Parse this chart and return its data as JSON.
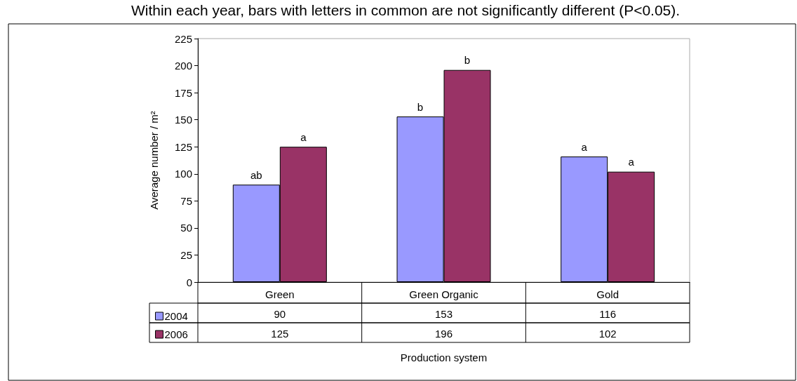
{
  "chart_data": {
    "type": "bar",
    "ylabel": "Average number / m²",
    "xlabel": "Production system",
    "categories": [
      "Green",
      "Green Organic",
      "Gold"
    ],
    "series": [
      {
        "name": "2004",
        "color": "#9999ff",
        "values": [
          90,
          153,
          116
        ]
      },
      {
        "name": "2006",
        "color": "#993366",
        "values": [
          125,
          196,
          102
        ]
      }
    ],
    "ylim": [
      0,
      225
    ],
    "yticks": [
      0,
      25,
      50,
      75,
      100,
      125,
      150,
      175,
      200,
      225
    ],
    "grid": false,
    "legend": "bottom",
    "data_labels": true,
    "annotations": [
      "Within each year, bars with letters in common are not significantly different (P<0.05).",
      {
        "text": "ab",
        "x": "Green",
        "y": 90
      },
      {
        "text": "a",
        "x": "Green",
        "y": 125
      },
      {
        "text": "b",
        "x": "Green Organic",
        "y": 153
      },
      {
        "text": "b",
        "x": "Green Organic",
        "y": 196
      },
      {
        "text": "a",
        "x": "Gold",
        "y": 116
      },
      {
        "text": "a",
        "x": "Gold",
        "y": 102
      }
    ]
  }
}
